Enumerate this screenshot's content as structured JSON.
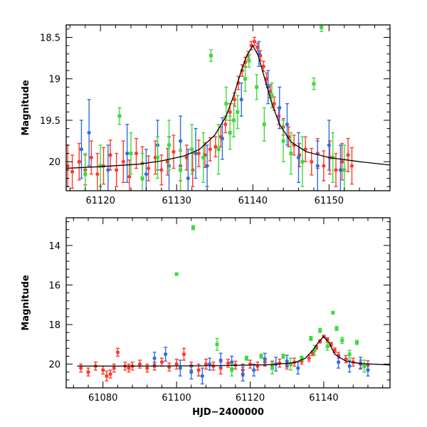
{
  "chart_data": [
    {
      "type": "scatter",
      "panel": "top",
      "xlabel": "",
      "ylabel": "Magnitude",
      "xlim": [
        61115.5,
        61158
      ],
      "ylim": [
        20.35,
        18.35
      ],
      "y_inverted": true,
      "xticks": [
        61120,
        61130,
        61140,
        61150
      ],
      "yticks": [
        18.5,
        19,
        19.5,
        20
      ],
      "ytick_labels": [
        "18.5",
        "19",
        "19.5",
        "20"
      ],
      "model_curve": {
        "name": "model fit",
        "color": "#000000",
        "x": [
          61115.5,
          61120,
          61125,
          61128,
          61131,
          61133,
          61135,
          61136.5,
          61137.5,
          61138.5,
          61139.2,
          61140,
          61140.7,
          61141.5,
          61142.5,
          61143.5,
          61145,
          61147,
          61150,
          61154,
          61158
        ],
        "y": [
          20.08,
          20.06,
          20.03,
          19.99,
          19.93,
          19.85,
          19.68,
          19.45,
          19.2,
          18.9,
          18.72,
          18.6,
          18.72,
          18.98,
          19.3,
          19.55,
          19.76,
          19.88,
          19.95,
          20.0,
          20.04
        ]
      },
      "series": [
        {
          "name": "red",
          "color": "#ff3a2a",
          "x": [
            61115.7,
            61116.3,
            61117.2,
            61118.0,
            61118.8,
            61119.6,
            61120.4,
            61121.3,
            61122.1,
            61123.0,
            61123.8,
            61124.7,
            61125.5,
            61126.3,
            61127.2,
            61128.0,
            61128.8,
            61129.6,
            61130.5,
            61131.3,
            61132.1,
            61132.9,
            61133.7,
            61134.4,
            61135.1,
            61135.8,
            61136.4,
            61137.0,
            61137.6,
            61138.1,
            61138.6,
            61139.0,
            61139.4,
            61139.8,
            61140.2,
            61140.6,
            61141.0,
            61141.4,
            61141.8,
            61142.3,
            61142.8,
            61143.4,
            61144.0,
            61144.7,
            61145.4,
            61146.1,
            61146.9,
            61147.7,
            61148.5,
            61149.3,
            61150.1,
            61150.9,
            61151.7,
            61152.5,
            61153.0
          ],
          "y": [
            20.05,
            20.12,
            20.0,
            20.1,
            19.95,
            20.15,
            20.05,
            19.92,
            20.1,
            20.0,
            20.18,
            19.9,
            20.02,
            20.08,
            19.95,
            20.1,
            20.0,
            19.88,
            20.05,
            19.95,
            20.1,
            19.9,
            19.92,
            19.85,
            19.82,
            19.7,
            19.55,
            19.4,
            19.25,
            19.05,
            18.9,
            18.8,
            18.72,
            18.6,
            18.55,
            18.62,
            18.72,
            18.85,
            19.0,
            19.15,
            19.3,
            19.45,
            19.58,
            19.7,
            19.8,
            19.92,
            19.85,
            20.0,
            19.9,
            20.05,
            19.95,
            20.1,
            20.0,
            19.92,
            20.05
          ],
          "err": [
            0.25,
            0.2,
            0.22,
            0.18,
            0.2,
            0.25,
            0.22,
            0.18,
            0.2,
            0.25,
            0.2,
            0.18,
            0.2,
            0.15,
            0.2,
            0.18,
            0.16,
            0.2,
            0.18,
            0.15,
            0.2,
            0.16,
            0.15,
            0.14,
            0.12,
            0.12,
            0.1,
            0.1,
            0.08,
            0.08,
            0.07,
            0.06,
            0.05,
            0.05,
            0.05,
            0.05,
            0.06,
            0.06,
            0.07,
            0.08,
            0.08,
            0.1,
            0.1,
            0.12,
            0.12,
            0.14,
            0.15,
            0.16,
            0.18,
            0.18,
            0.2,
            0.2,
            0.22,
            0.2,
            0.22
          ]
        },
        {
          "name": "blue",
          "color": "#2e6fe0",
          "x": [
            61117.5,
            61118.5,
            61121.0,
            61123.5,
            61126.0,
            61127.5,
            61129.0,
            61130.5,
            61131.5,
            61132.5,
            61134.0,
            61136.0,
            61138.5,
            61140.8,
            61142.0,
            61143.5,
            61144.5,
            61146.0,
            61148.5,
            61150.0,
            61151.5
          ],
          "y": [
            19.85,
            19.65,
            20.1,
            19.9,
            20.15,
            19.8,
            20.05,
            19.75,
            20.2,
            19.9,
            20.05,
            19.72,
            19.25,
            18.7,
            19.1,
            19.35,
            19.55,
            19.95,
            20.05,
            19.8,
            20.1
          ],
          "err": [
            0.35,
            0.4,
            0.3,
            0.35,
            0.3,
            0.3,
            0.35,
            0.3,
            0.35,
            0.3,
            0.25,
            0.25,
            0.2,
            0.15,
            0.2,
            0.25,
            0.25,
            0.3,
            0.3,
            0.3,
            0.3
          ]
        },
        {
          "name": "green",
          "color": "#3cdc3c",
          "x": [
            61118.0,
            61120.0,
            61122.5,
            61124.0,
            61125.5,
            61127.5,
            61129.0,
            61130.5,
            61132.0,
            61133.5,
            61134.5,
            61135.5,
            61136.5,
            61137.0,
            61137.5,
            61138.0,
            61139.0,
            61139.5,
            61140.5,
            61141.5,
            61142.5,
            61144.0,
            61145.0,
            61146.5,
            61148.0,
            61149.0,
            61150.5,
            61152.0
          ],
          "y": [
            20.15,
            20.05,
            19.45,
            19.9,
            20.2,
            19.95,
            19.8,
            20.1,
            19.85,
            19.95,
            18.72,
            19.85,
            19.3,
            19.65,
            19.5,
            19.4,
            19.0,
            18.78,
            19.1,
            19.55,
            19.2,
            19.75,
            19.9,
            20.0,
            19.06,
            18.38,
            19.95,
            20.1
          ],
          "err": [
            0.25,
            0.25,
            0.1,
            0.25,
            0.3,
            0.25,
            0.3,
            0.25,
            0.3,
            0.3,
            0.07,
            0.3,
            0.2,
            0.2,
            0.2,
            0.2,
            0.15,
            0.08,
            0.15,
            0.2,
            0.15,
            0.25,
            0.25,
            0.3,
            0.07,
            0.05,
            0.3,
            0.3
          ]
        }
      ]
    },
    {
      "type": "scatter",
      "panel": "bottom",
      "xlabel": "HJD−2400000",
      "ylabel": "Magnitude",
      "xlim": [
        61070,
        61158
      ],
      "ylim": [
        21.2,
        12.6
      ],
      "y_inverted": true,
      "xticks": [
        61080,
        61100,
        61120,
        61140
      ],
      "yticks": [
        14,
        16,
        18,
        20
      ],
      "ytick_labels": [
        "14",
        "16",
        "18",
        "20"
      ],
      "model_curve": {
        "name": "model fit",
        "color": "#000000",
        "x": [
          61073,
          61090,
          61110,
          61125,
          61132,
          61135,
          61137,
          61138.5,
          61140,
          61141.5,
          61143,
          61146,
          61150,
          61158
        ],
        "y": [
          20.1,
          20.1,
          20.08,
          20.03,
          19.93,
          19.7,
          19.3,
          18.9,
          18.6,
          18.95,
          19.5,
          19.85,
          19.97,
          20.04
        ]
      },
      "series": [
        {
          "name": "red",
          "color": "#ff3a2a",
          "x": [
            61074,
            61076,
            61078,
            61080,
            61081,
            61082,
            61083,
            61084,
            61086,
            61087,
            61088,
            61090,
            61092,
            61094,
            61096,
            61098,
            61100,
            61102,
            61104,
            61106,
            61108,
            61110,
            61112,
            61114,
            61116,
            61118,
            61120,
            61122,
            61124,
            61126,
            61128,
            61130,
            61132,
            61134,
            61136,
            61137,
            61138,
            61139,
            61140,
            61141,
            61142,
            61143,
            61144,
            61146,
            61148,
            61150,
            61152
          ],
          "y": [
            20.2,
            20.4,
            20.1,
            20.3,
            20.6,
            20.5,
            20.2,
            19.4,
            20.1,
            20.2,
            20.1,
            20.0,
            20.2,
            20.1,
            19.9,
            20.15,
            20.0,
            19.5,
            20.1,
            20.3,
            20.0,
            20.1,
            20.2,
            19.95,
            20.05,
            20.3,
            20.0,
            20.1,
            19.9,
            20.05,
            19.95,
            20.05,
            19.9,
            19.85,
            19.7,
            19.45,
            19.15,
            18.85,
            18.6,
            18.75,
            19.0,
            19.3,
            19.55,
            19.75,
            19.9,
            20.0,
            20.05
          ],
          "err": [
            0.2,
            0.2,
            0.2,
            0.2,
            0.25,
            0.2,
            0.2,
            0.2,
            0.2,
            0.2,
            0.2,
            0.2,
            0.2,
            0.2,
            0.2,
            0.2,
            0.25,
            0.3,
            0.2,
            0.3,
            0.25,
            0.2,
            0.3,
            0.2,
            0.2,
            0.3,
            0.2,
            0.2,
            0.2,
            0.2,
            0.2,
            0.2,
            0.2,
            0.15,
            0.15,
            0.12,
            0.1,
            0.08,
            0.06,
            0.08,
            0.1,
            0.12,
            0.15,
            0.18,
            0.2,
            0.2,
            0.22
          ]
        },
        {
          "name": "blue",
          "color": "#2e6fe0",
          "x": [
            61094,
            61097,
            61101,
            61104,
            61107,
            61109,
            61112,
            61115,
            61118,
            61121,
            61124,
            61127,
            61130,
            61133,
            61144,
            61147,
            61150,
            61152
          ],
          "y": [
            19.7,
            19.5,
            20.2,
            20.4,
            20.6,
            20.0,
            19.8,
            19.9,
            20.5,
            20.3,
            19.75,
            20.0,
            19.85,
            20.2,
            19.9,
            20.1,
            19.95,
            20.3
          ],
          "err": [
            0.3,
            0.35,
            0.4,
            0.35,
            0.4,
            0.3,
            0.35,
            0.3,
            0.35,
            0.3,
            0.3,
            0.35,
            0.3,
            0.3,
            0.3,
            0.3,
            0.3,
            0.3
          ]
        },
        {
          "name": "green",
          "color": "#3cdc3c",
          "x": [
            61100,
            61104.5,
            61111,
            61115,
            61119,
            61123,
            61126,
            61129,
            61131,
            61134,
            61136.5,
            61137.5,
            61139,
            61141,
            61142.5,
            61143.5,
            61145,
            61147,
            61149,
            61151
          ],
          "y": [
            15.45,
            13.1,
            19.0,
            20.3,
            19.7,
            19.6,
            20.2,
            19.6,
            20.0,
            19.7,
            18.7,
            19.3,
            18.3,
            19.1,
            17.4,
            18.2,
            18.8,
            19.5,
            18.9,
            20.1
          ],
          "err": [
            0.05,
            0.1,
            0.3,
            0.3,
            0.1,
            0.1,
            0.3,
            0.1,
            0.3,
            0.1,
            0.1,
            0.25,
            0.1,
            0.2,
            0.05,
            0.1,
            0.15,
            0.2,
            0.1,
            0.3
          ]
        }
      ]
    }
  ]
}
